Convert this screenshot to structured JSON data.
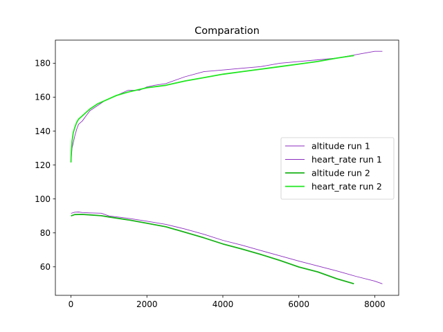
{
  "chart_data": {
    "type": "line",
    "title": "Comparation",
    "xlabel": "",
    "ylabel": "",
    "xlim": [
      -410,
      8630
    ],
    "ylim": [
      43.2,
      193.6
    ],
    "xticks": [
      0,
      2000,
      4000,
      6000,
      8000
    ],
    "yticks": [
      60,
      80,
      100,
      120,
      140,
      160,
      180
    ],
    "grid": false,
    "legend_position": "center-right",
    "series": [
      {
        "name": "altitude run 1",
        "color": "#8b2bbf",
        "style": "thin",
        "x": [
          0,
          100,
          200,
          300,
          500,
          800,
          1000,
          1500,
          2000,
          2500,
          3000,
          3500,
          4000,
          4500,
          5000,
          5500,
          6000,
          6500,
          7000,
          7500,
          8000,
          8200
        ],
        "y": [
          91.5,
          92.2,
          92.3,
          92.0,
          91.8,
          91.6,
          90.0,
          88.6,
          86.9,
          85.0,
          82.3,
          79.2,
          75.6,
          72.8,
          69.6,
          66.5,
          63.4,
          60.5,
          57.6,
          54.4,
          51.6,
          50.0
        ]
      },
      {
        "name": "heart_rate run 1",
        "color": "#8b2bbf",
        "style": "thin",
        "x": [
          0,
          30,
          100,
          150,
          200,
          300,
          400,
          500,
          700,
          900,
          1200,
          1500,
          1800,
          2000,
          2200,
          2500,
          3000,
          3500,
          4000,
          4500,
          5000,
          5500,
          6000,
          6500,
          7000,
          7500,
          8000,
          8200
        ],
        "y": [
          122,
          130,
          137,
          141,
          144,
          146,
          149,
          152,
          155,
          158,
          161,
          164,
          164,
          166,
          167,
          168,
          172,
          175,
          176,
          177,
          178,
          180,
          181,
          182,
          183,
          185,
          187,
          187
        ]
      },
      {
        "name": "altitude run 2",
        "color": "#17b217",
        "style": "thick",
        "x": [
          0,
          100,
          300,
          500,
          800,
          1000,
          1500,
          2000,
          2500,
          3000,
          3500,
          4000,
          4500,
          5000,
          5500,
          6000,
          6500,
          7000,
          7450
        ],
        "y": [
          90.0,
          90.8,
          90.9,
          90.6,
          90.1,
          89.4,
          87.7,
          85.7,
          83.6,
          80.4,
          77.1,
          73.5,
          70.5,
          67.3,
          63.8,
          59.9,
          57.0,
          53.0,
          50.0
        ]
      },
      {
        "name": "heart_rate run 2",
        "color": "#1ee61e",
        "style": "thick",
        "x": [
          0,
          10,
          30,
          60,
          100,
          150,
          200,
          300,
          400,
          500,
          700,
          900,
          1200,
          1500,
          1800,
          2000,
          2500,
          3000,
          3500,
          4000,
          4500,
          5000,
          5500,
          6000,
          6500,
          7000,
          7450
        ],
        "y": [
          121.5,
          128,
          134,
          139,
          142,
          145,
          147,
          149,
          151,
          153,
          156,
          158,
          161,
          163,
          164.5,
          165.5,
          167,
          169.5,
          171.5,
          173.5,
          175,
          176.5,
          178,
          179.5,
          181,
          183,
          184.5
        ]
      }
    ]
  }
}
